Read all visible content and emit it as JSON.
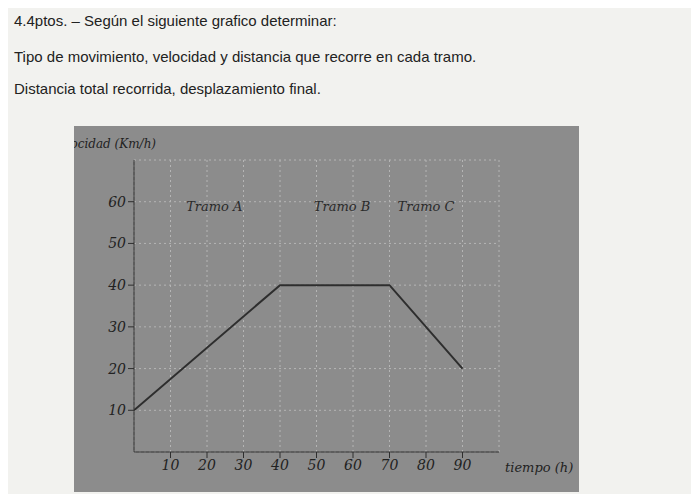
{
  "header": {
    "problem": "4.4ptos. – Según el siguiente grafico determinar:",
    "lines": [
      "Tipo de movimiento, velocidad y distancia que recorre en cada tramo.",
      "Distancia total recorrida, desplazamiento final."
    ]
  },
  "chart_data": {
    "type": "line",
    "x_label": "tiempo (h)",
    "y_label": "Velocidad (Km/h)",
    "x": [
      0,
      40,
      70,
      90
    ],
    "values": [
      10,
      40,
      40,
      20
    ],
    "color": "#2e2e2e",
    "xlim": [
      0,
      100
    ],
    "xticks": [
      10,
      20,
      30,
      40,
      50,
      60,
      70,
      80,
      90
    ],
    "ylim": [
      0,
      70
    ],
    "yticks": [
      10,
      20,
      30,
      40,
      50,
      60
    ],
    "grid": true,
    "annotations": [
      {
        "text": "Tramo A",
        "x": 22,
        "y": 59
      },
      {
        "text": "Tramo B",
        "x": 57,
        "y": 59
      },
      {
        "text": "Tramo C",
        "x": 80,
        "y": 59
      }
    ]
  }
}
